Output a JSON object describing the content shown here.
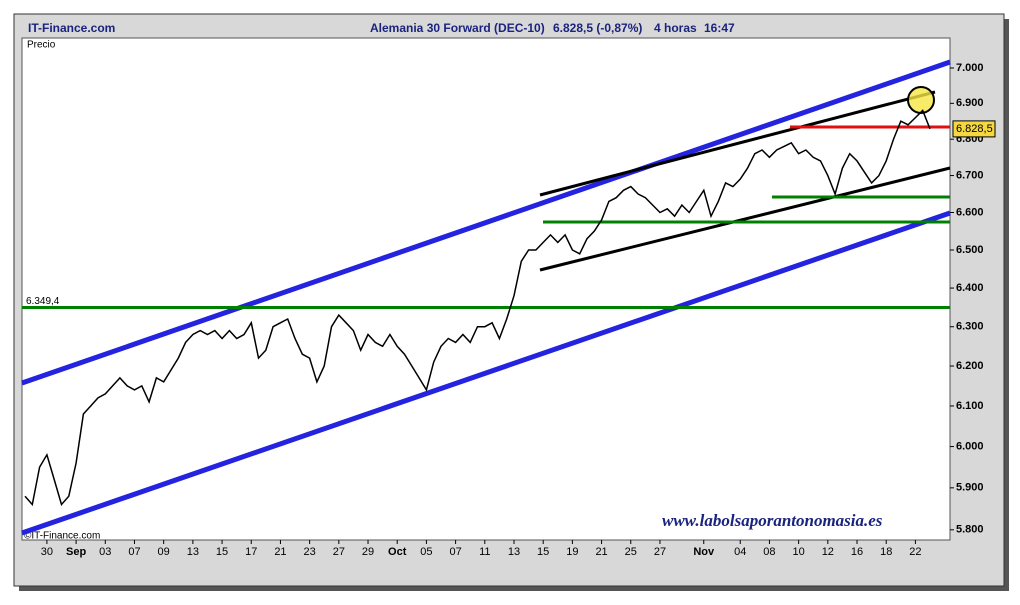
{
  "chart_data": {
    "type": "line",
    "site": "IT-Finance.com",
    "title": "Alemania 30 Forward (DEC-10)",
    "quote": "6.828,5 (-0,87%)",
    "timeframe": "4 horas",
    "time": "16:47",
    "y_label": "Precio",
    "copyright": "©IT-Finance.com",
    "watermark": "www.labolsaporantonomasia.es",
    "log_scale": true,
    "ylim": [
      5776,
      7086
    ],
    "yticks": [
      {
        "value": 5800,
        "label": "5.800"
      },
      {
        "value": 5900,
        "label": "5.900"
      },
      {
        "value": 6000,
        "label": "6.000"
      },
      {
        "value": 6100,
        "label": "6.100"
      },
      {
        "value": 6200,
        "label": "6.200"
      },
      {
        "value": 6300,
        "label": "6.300"
      },
      {
        "value": 6400,
        "label": "6.400"
      },
      {
        "value": 6500,
        "label": "6.500"
      },
      {
        "value": 6600,
        "label": "6.600"
      },
      {
        "value": 6700,
        "label": "6.700"
      },
      {
        "value": 6800,
        "label": "6.800"
      },
      {
        "value": 6900,
        "label": "6.900"
      },
      {
        "value": 7000,
        "label": "7.000"
      }
    ],
    "categories": [
      null,
      null,
      null,
      "30",
      null,
      null,
      null,
      "Sep",
      null,
      null,
      null,
      "03",
      null,
      null,
      null,
      "07",
      null,
      null,
      null,
      "09",
      null,
      null,
      null,
      "13",
      null,
      null,
      null,
      "15",
      null,
      null,
      null,
      "17",
      null,
      null,
      null,
      "21",
      null,
      null,
      null,
      "23",
      null,
      null,
      null,
      "27",
      null,
      null,
      null,
      "29",
      null,
      null,
      null,
      "Oct",
      null,
      null,
      null,
      "05",
      null,
      null,
      null,
      "07",
      null,
      null,
      null,
      "11",
      null,
      null,
      null,
      "13",
      null,
      null,
      null,
      "15",
      null,
      null,
      null,
      "19",
      null,
      null,
      null,
      "21",
      null,
      null,
      null,
      "25",
      null,
      null,
      null,
      "27",
      null,
      null,
      null,
      null,
      null,
      "Nov",
      null,
      null,
      null,
      null,
      "04",
      null,
      null,
      null,
      "08",
      null,
      null,
      null,
      "10",
      null,
      null,
      null,
      "12",
      null,
      null,
      null,
      "16",
      null,
      null,
      null,
      "18",
      null,
      null,
      null,
      "22",
      null,
      null
    ],
    "series": [
      {
        "name": "Precio",
        "color": "#000000",
        "values": [
          5880,
          5860,
          5950,
          5980,
          5920,
          5860,
          5880,
          5960,
          6080,
          6100,
          6120,
          6130,
          6150,
          6170,
          6150,
          6140,
          6150,
          6110,
          6170,
          6160,
          6190,
          6220,
          6260,
          6280,
          6290,
          6280,
          6290,
          6270,
          6290,
          6270,
          6280,
          6310,
          6220,
          6240,
          6300,
          6310,
          6320,
          6270,
          6230,
          6220,
          6160,
          6200,
          6300,
          6330,
          6310,
          6290,
          6240,
          6280,
          6260,
          6250,
          6280,
          6250,
          6230,
          6200,
          6170,
          6140,
          6210,
          6250,
          6270,
          6260,
          6280,
          6260,
          6300,
          6300,
          6310,
          6270,
          6320,
          6380,
          6470,
          6500,
          6500,
          6520,
          6540,
          6520,
          6540,
          6500,
          6490,
          6530,
          6550,
          6580,
          6630,
          6640,
          6660,
          6670,
          6650,
          6640,
          6620,
          6600,
          6610,
          6590,
          6620,
          6600,
          6630,
          6660,
          6590,
          6630,
          6680,
          6670,
          6690,
          6720,
          6760,
          6770,
          6750,
          6770,
          6780,
          6790,
          6760,
          6770,
          6750,
          6740,
          6700,
          6650,
          6720,
          6760,
          6740,
          6710,
          6680,
          6700,
          6740,
          6800,
          6850,
          6840,
          6860,
          6880,
          6828.5
        ]
      }
    ],
    "last_label": {
      "value": 6828.5,
      "label": "6.828,5"
    },
    "levels": [
      {
        "value": 6349.4,
        "label": "6.349,4",
        "color": "#008000"
      }
    ]
  }
}
